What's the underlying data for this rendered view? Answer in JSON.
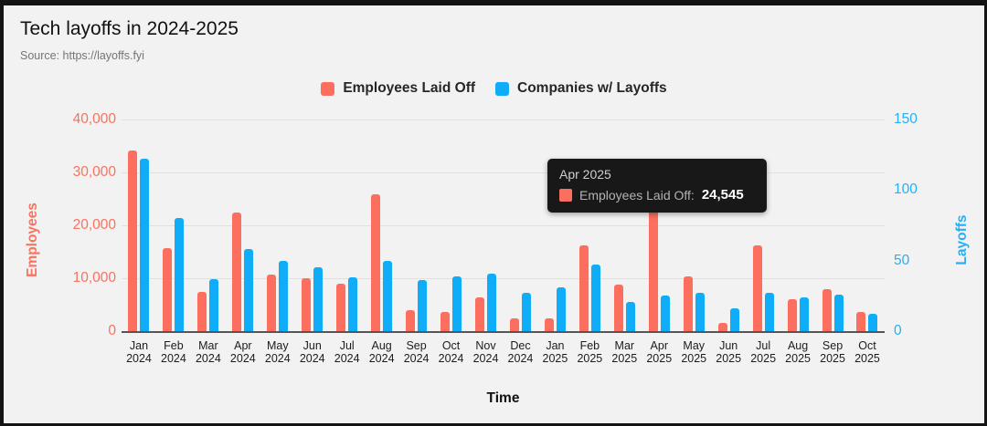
{
  "header": {
    "title": "Tech layoffs in 2024-2025",
    "source": "Source: https://layoffs.fyi"
  },
  "legend": {
    "items": [
      {
        "label": "Employees Laid Off",
        "color": "#fc6e5d"
      },
      {
        "label": "Companies w/ Layoffs",
        "color": "#0fadf8"
      }
    ]
  },
  "axes": {
    "left": {
      "title": "Employees",
      "ticks": [
        "40,000",
        "30,000",
        "20,000",
        "10,000",
        "0"
      ],
      "max": 40000,
      "color": "#f9725f"
    },
    "right": {
      "title": "Layoffs",
      "ticks": [
        "150",
        "100",
        "50",
        "0"
      ],
      "max": 150,
      "color": "#25b0f6"
    },
    "x": {
      "title": "Time"
    }
  },
  "tooltip": {
    "title": "Apr 2025",
    "series_label": "Employees Laid Off:",
    "value": "24,545",
    "swatch_color": "#fc6e5d"
  },
  "chart_data": {
    "type": "bar",
    "title": "Tech layoffs in 2024-2025",
    "xlabel": "Time",
    "ylabel_left": "Employees",
    "ylabel_right": "Layoffs",
    "ylim_left": [
      0,
      40000
    ],
    "ylim_right": [
      0,
      150
    ],
    "grid": true,
    "legend_position": "top",
    "categories": [
      "Jan 2024",
      "Feb 2024",
      "Mar 2024",
      "Apr 2024",
      "May 2024",
      "Jun 2024",
      "Jul 2024",
      "Aug 2024",
      "Sep 2024",
      "Oct 2024",
      "Nov 2024",
      "Dec 2024",
      "Jan 2025",
      "Feb 2025",
      "Mar 2025",
      "Apr 2025",
      "May 2025",
      "Jun 2025",
      "Jul 2025",
      "Aug 2025",
      "Sep 2025",
      "Oct 2025"
    ],
    "series": [
      {
        "name": "Employees Laid Off",
        "axis": "left",
        "color": "#fc6e5d",
        "values": [
          34107,
          15639,
          7403,
          22423,
          10755,
          10083,
          9051,
          25884,
          4021,
          3697,
          6401,
          2427,
          2403,
          16234,
          8834,
          24545,
          10397,
          1606,
          16279,
          5955,
          7963,
          3660
        ]
      },
      {
        "name": "Companies w/ Layoffs",
        "axis": "right",
        "color": "#0fadf8",
        "values": [
          122,
          80,
          37,
          58,
          50,
          45,
          38,
          50,
          36,
          39,
          41,
          27,
          31,
          47,
          21,
          25,
          27,
          16,
          27,
          24,
          26,
          12
        ]
      }
    ]
  }
}
